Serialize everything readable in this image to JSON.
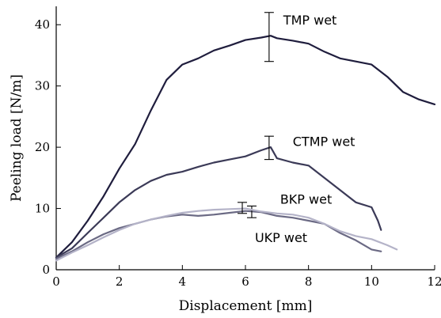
{
  "chart_data": {
    "type": "line",
    "xlabel": "Displacement [mm]",
    "ylabel": "Peeling load [N/m]",
    "xlim": [
      0,
      12
    ],
    "ylim": [
      0,
      43
    ],
    "xticks": [
      0,
      2,
      4,
      6,
      8,
      10,
      12
    ],
    "yticks": [
      0,
      10,
      20,
      30,
      40
    ],
    "grid": false,
    "legend": "inline labels",
    "series": [
      {
        "name": "TMP wet",
        "color": "#1f1d3d",
        "x": [
          0,
          0.5,
          1,
          1.5,
          2,
          2.5,
          3,
          3.5,
          4,
          4.5,
          5,
          5.5,
          6,
          6.5,
          6.8,
          7,
          7.5,
          8,
          8.5,
          9,
          9.5,
          10,
          10.5,
          11,
          11.5,
          12
        ],
        "y": [
          2,
          4.5,
          8,
          12,
          16.5,
          20.5,
          26,
          31,
          33.5,
          34.5,
          35.8,
          36.6,
          37.5,
          37.9,
          38.2,
          37.8,
          37.4,
          36.9,
          35.6,
          34.5,
          34,
          33.5,
          31.5,
          29,
          27.8,
          27
        ],
        "errorbar": {
          "x": 6.75,
          "low": 34,
          "high": 42
        },
        "label_at": {
          "x": 7.2,
          "y": 40
        }
      },
      {
        "name": "CTMP wet",
        "color": "#3b3a57",
        "x": [
          0,
          0.5,
          1,
          1.5,
          2,
          2.5,
          3,
          3.5,
          4,
          4.5,
          5,
          5.5,
          6,
          6.5,
          6.8,
          7,
          7.5,
          8,
          8.5,
          9,
          9.5,
          10,
          10.2,
          10.3
        ],
        "y": [
          2,
          3.5,
          6,
          8.5,
          11,
          13,
          14.5,
          15.5,
          16,
          16.8,
          17.5,
          18,
          18.5,
          19.5,
          20,
          18.2,
          17.5,
          17,
          15,
          13,
          11,
          10.2,
          8,
          6.5
        ],
        "errorbar": {
          "x": 6.75,
          "low": 18,
          "high": 21.8
        },
        "label_at": {
          "x": 7.5,
          "y": 20.2
        }
      },
      {
        "name": "BKP wet",
        "color": "#6b6a84",
        "x": [
          0,
          0.5,
          1,
          1.5,
          2,
          2.5,
          3,
          3.5,
          4,
          4.5,
          5,
          5.5,
          6,
          6.5,
          7,
          7.5,
          8,
          8.5,
          9,
          9.5,
          10,
          10.3
        ],
        "y": [
          1.8,
          3,
          4.5,
          5.8,
          6.8,
          7.5,
          8.2,
          8.7,
          9,
          8.8,
          9,
          9.3,
          9.6,
          9.4,
          8.8,
          8.5,
          8,
          7.5,
          6,
          4.8,
          3.3,
          3
        ],
        "errorbar": {
          "x": 6.2,
          "low": 8.5,
          "high": 10.4
        },
        "label_at": {
          "x": 7.1,
          "y": 10.8
        }
      },
      {
        "name": "UKP wet",
        "color": "#b4b3c8",
        "x": [
          0,
          0.5,
          1,
          1.5,
          2,
          2.5,
          3,
          3.5,
          4,
          4.5,
          5,
          5.5,
          6,
          6.5,
          7,
          7.5,
          8,
          8.5,
          9,
          9.5,
          10,
          10.5,
          10.8
        ],
        "y": [
          1.5,
          2.8,
          4,
          5.3,
          6.5,
          7.5,
          8.2,
          8.8,
          9.3,
          9.6,
          9.8,
          9.9,
          10,
          9.5,
          9.2,
          9,
          8.5,
          7.5,
          6.3,
          5.5,
          5,
          4,
          3.3
        ],
        "errorbar": {
          "x": 5.9,
          "low": 9.2,
          "high": 11
        },
        "label_at": {
          "x": 6.3,
          "y": 4.5
        }
      }
    ]
  }
}
